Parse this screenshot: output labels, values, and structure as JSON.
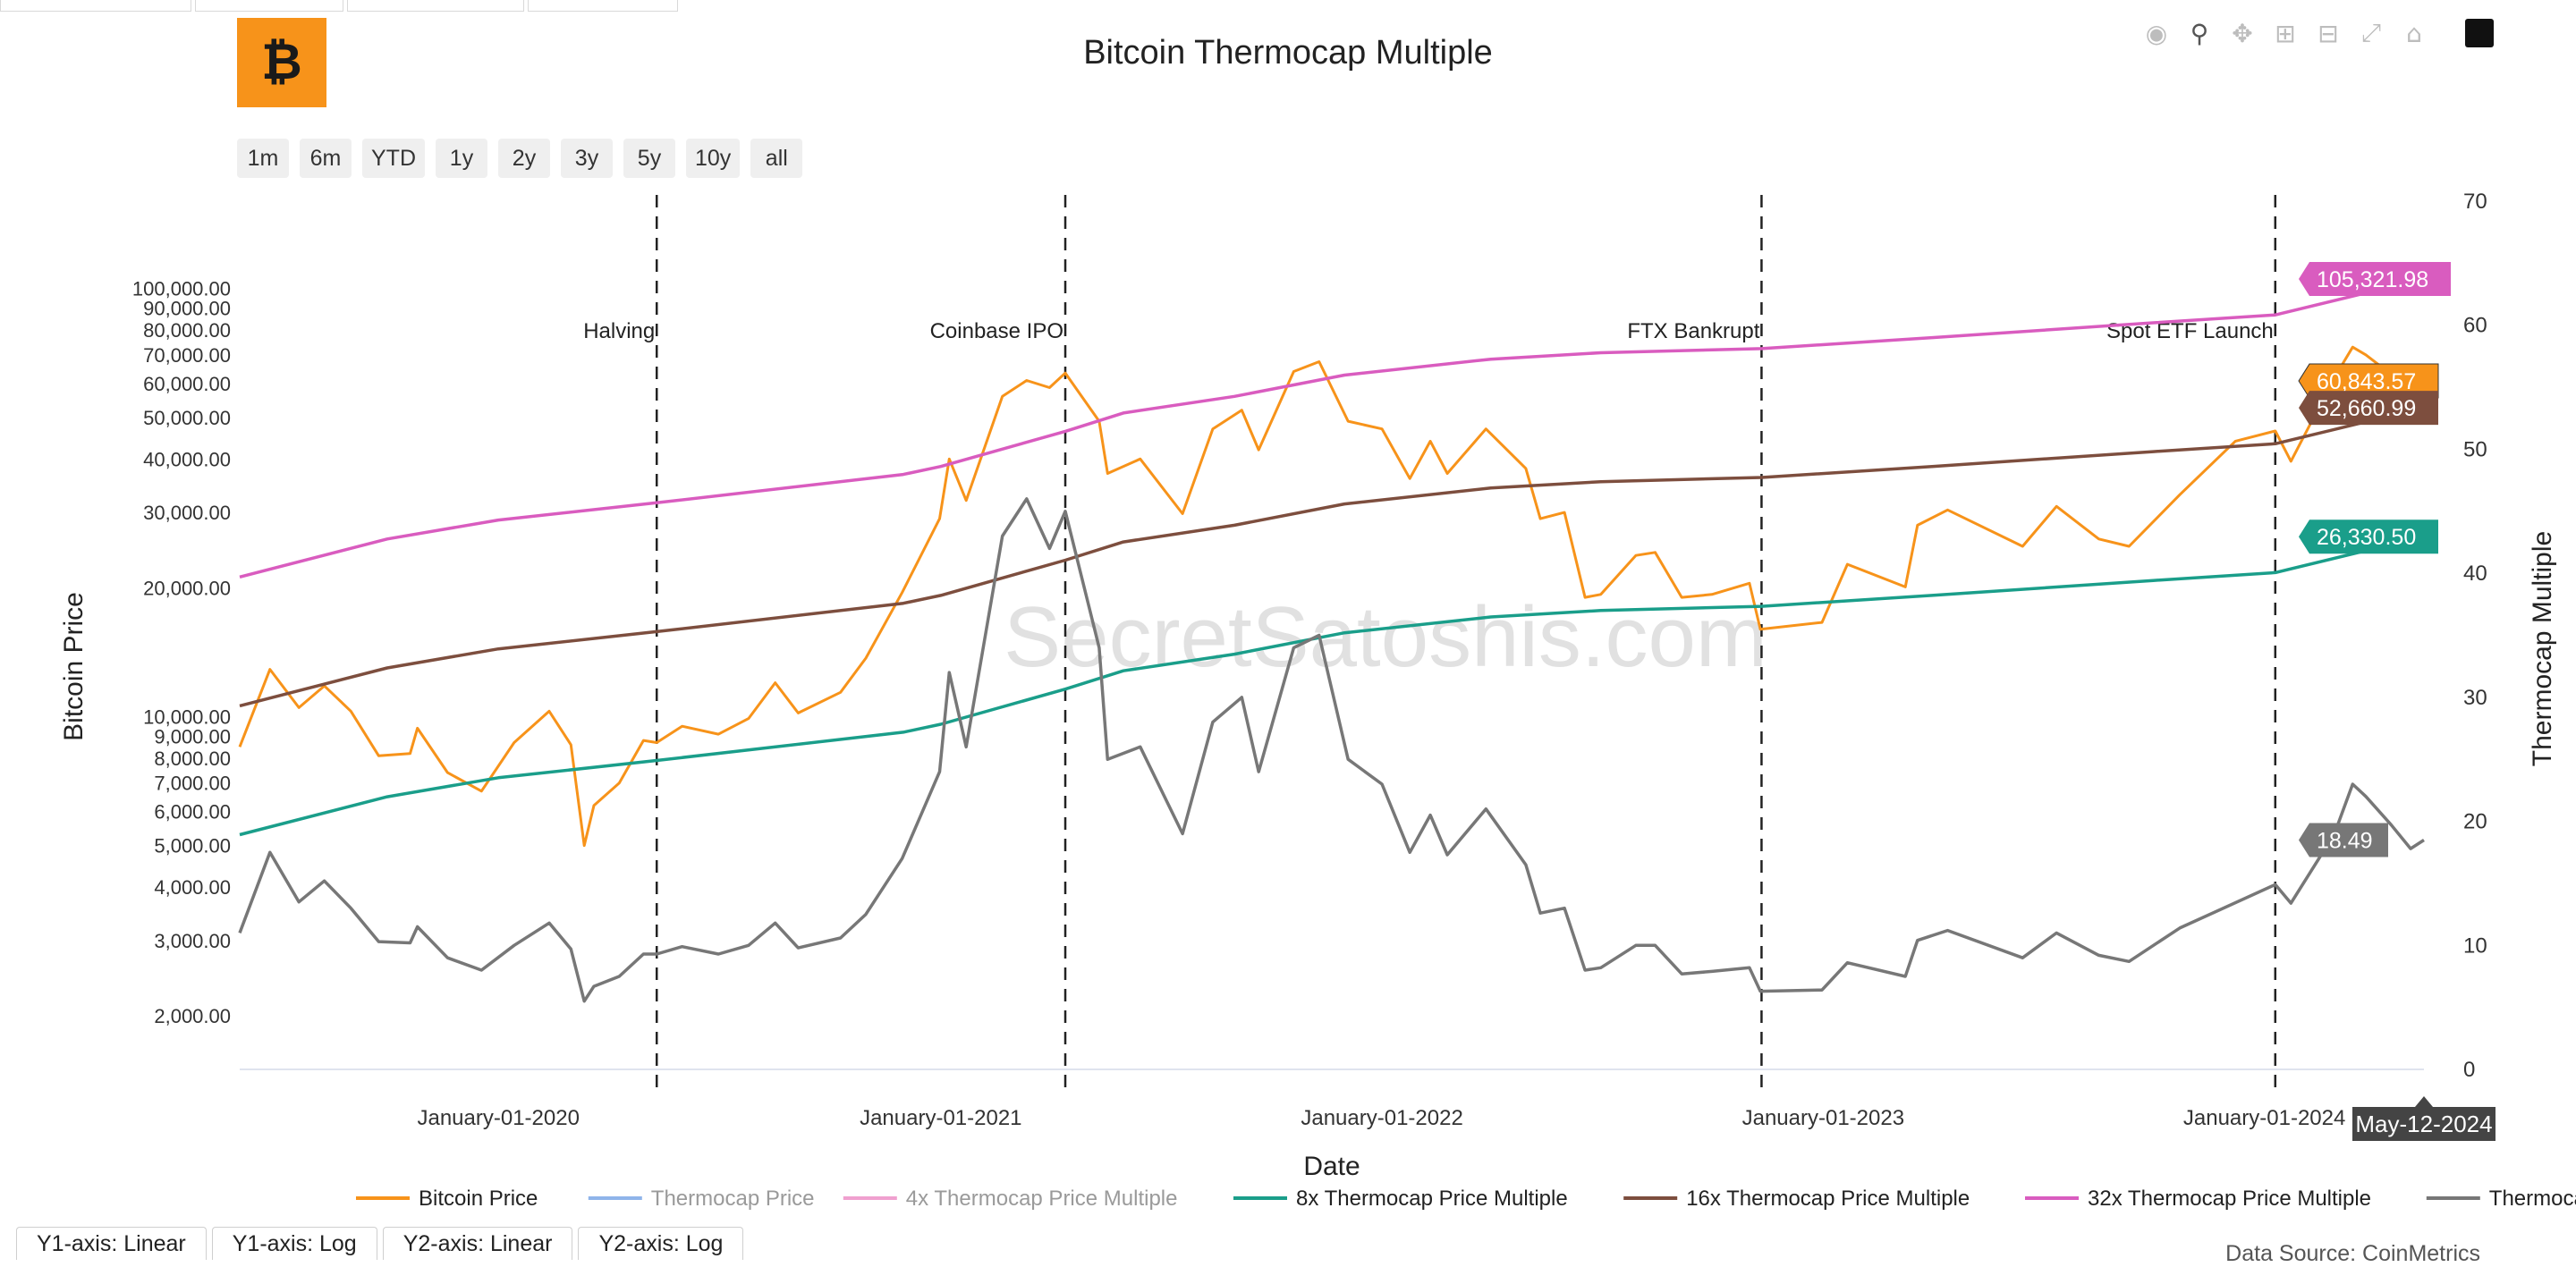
{
  "chart_data": {
    "type": "line",
    "title": "Bitcoin Thermocap Multiple",
    "xlabel": "Date",
    "ylabel": "Bitcoin Price",
    "y2label": "Thermocap Multiple",
    "y_scale": "log",
    "y_range": [
      1500,
      160000
    ],
    "y_ticks": [
      2000,
      3000,
      4000,
      5000,
      6000,
      7000,
      8000,
      9000,
      10000,
      20000,
      30000,
      40000,
      50000,
      60000,
      70000,
      80000,
      90000,
      100000
    ],
    "y_tick_labels": [
      "2,000.00",
      "3,000.00",
      "4,000.00",
      "5,000.00",
      "6,000.00",
      "7,000.00",
      "8,000.00",
      "9,000.00",
      "10,000.00",
      "20,000.00",
      "30,000.00",
      "40,000.00",
      "50,000.00",
      "60,000.00",
      "70,000.00",
      "80,000.00",
      "90,000.00",
      "100,000.00"
    ],
    "y2_range": [
      0,
      70
    ],
    "y2_ticks": [
      0,
      10,
      20,
      30,
      40,
      50,
      60,
      70
    ],
    "x_range": [
      "2019-06-01",
      "2024-05-12"
    ],
    "x_ticks": [
      "2020-01-01",
      "2021-01-01",
      "2022-01-01",
      "2023-01-01",
      "2024-01-01"
    ],
    "x_tick_labels": [
      "January-01-2020",
      "January-01-2021",
      "January-01-2022",
      "January-01-2023",
      "January-01-2024"
    ],
    "hover_x_label": "May-12-2024",
    "events": [
      {
        "date": "2020-05-11",
        "label": "Halving"
      },
      {
        "date": "2021-04-14",
        "label": "Coinbase IPO"
      },
      {
        "date": "2022-11-11",
        "label": "FTX Bankrupt"
      },
      {
        "date": "2024-01-10",
        "label": "Spot ETF Launch"
      }
    ],
    "series": [
      {
        "name": "Bitcoin Price",
        "color": "#f7931a",
        "axis": "y",
        "end_label": "60,843.57",
        "points": [
          [
            "2019-06-01",
            8500
          ],
          [
            "2019-06-26",
            12900
          ],
          [
            "2019-07-20",
            10500
          ],
          [
            "2019-08-10",
            11800
          ],
          [
            "2019-09-01",
            10300
          ],
          [
            "2019-09-24",
            8100
          ],
          [
            "2019-10-20",
            8200
          ],
          [
            "2019-10-26",
            9400
          ],
          [
            "2019-11-20",
            7400
          ],
          [
            "2019-12-18",
            6700
          ],
          [
            "2020-01-14",
            8700
          ],
          [
            "2020-02-12",
            10300
          ],
          [
            "2020-03-01",
            8600
          ],
          [
            "2020-03-12",
            5000
          ],
          [
            "2020-03-20",
            6200
          ],
          [
            "2020-04-10",
            7000
          ],
          [
            "2020-04-30",
            8800
          ],
          [
            "2020-05-11",
            8700
          ],
          [
            "2020-06-01",
            9500
          ],
          [
            "2020-07-01",
            9100
          ],
          [
            "2020-07-26",
            9900
          ],
          [
            "2020-08-17",
            12000
          ],
          [
            "2020-09-05",
            10200
          ],
          [
            "2020-10-10",
            11400
          ],
          [
            "2020-10-31",
            13700
          ],
          [
            "2020-11-30",
            19500
          ],
          [
            "2020-12-31",
            29000
          ],
          [
            "2021-01-08",
            40000
          ],
          [
            "2021-01-22",
            32000
          ],
          [
            "2021-02-21",
            56000
          ],
          [
            "2021-03-13",
            61000
          ],
          [
            "2021-04-01",
            58700
          ],
          [
            "2021-04-14",
            63500
          ],
          [
            "2021-05-12",
            49000
          ],
          [
            "2021-05-19",
            37000
          ],
          [
            "2021-06-15",
            40000
          ],
          [
            "2021-07-20",
            29800
          ],
          [
            "2021-08-14",
            47000
          ],
          [
            "2021-09-07",
            52000
          ],
          [
            "2021-09-21",
            42000
          ],
          [
            "2021-10-20",
            64000
          ],
          [
            "2021-11-10",
            67500
          ],
          [
            "2021-12-04",
            49000
          ],
          [
            "2022-01-01",
            47000
          ],
          [
            "2022-01-24",
            36000
          ],
          [
            "2022-02-10",
            44000
          ],
          [
            "2022-02-24",
            37000
          ],
          [
            "2022-03-28",
            47000
          ],
          [
            "2022-04-30",
            38000
          ],
          [
            "2022-05-12",
            29000
          ],
          [
            "2022-06-01",
            30000
          ],
          [
            "2022-06-18",
            19000
          ],
          [
            "2022-07-01",
            19300
          ],
          [
            "2022-07-30",
            23800
          ],
          [
            "2022-08-15",
            24200
          ],
          [
            "2022-09-06",
            19000
          ],
          [
            "2022-10-01",
            19300
          ],
          [
            "2022-11-01",
            20500
          ],
          [
            "2022-11-10",
            16000
          ],
          [
            "2022-12-31",
            16600
          ],
          [
            "2023-01-21",
            22700
          ],
          [
            "2023-03-10",
            20100
          ],
          [
            "2023-03-20",
            28000
          ],
          [
            "2023-04-14",
            30400
          ],
          [
            "2023-06-15",
            25000
          ],
          [
            "2023-07-13",
            31000
          ],
          [
            "2023-08-17",
            26000
          ],
          [
            "2023-09-11",
            25000
          ],
          [
            "2023-10-23",
            33000
          ],
          [
            "2023-12-08",
            44000
          ],
          [
            "2024-01-10",
            46500
          ],
          [
            "2024-01-23",
            39500
          ],
          [
            "2024-02-28",
            62000
          ],
          [
            "2024-03-14",
            73000
          ],
          [
            "2024-03-25",
            70000
          ],
          [
            "2024-04-15",
            63000
          ],
          [
            "2024-05-01",
            57000
          ],
          [
            "2024-05-12",
            60843.57
          ]
        ]
      },
      {
        "name": "Thermocap Price",
        "color": "#8fb4ea",
        "axis": "y",
        "visible": false,
        "points": []
      },
      {
        "name": "4x Thermocap Price Multiple",
        "color": "#f0a0cf",
        "axis": "y",
        "visible": false,
        "points": []
      },
      {
        "name": "8x Thermocap Price Multiple",
        "color": "#1a9e8a",
        "axis": "y",
        "end_label": "26,330.50",
        "points": [
          [
            "2019-06-01",
            5300
          ],
          [
            "2019-10-01",
            6500
          ],
          [
            "2020-01-01",
            7200
          ],
          [
            "2020-05-11",
            7900
          ],
          [
            "2020-12-01",
            9200
          ],
          [
            "2021-01-01",
            9600
          ],
          [
            "2021-04-14",
            11600
          ],
          [
            "2021-06-01",
            12800
          ],
          [
            "2021-09-01",
            14000
          ],
          [
            "2021-12-01",
            15700
          ],
          [
            "2022-04-01",
            17100
          ],
          [
            "2022-07-01",
            17700
          ],
          [
            "2022-11-11",
            18100
          ],
          [
            "2023-04-01",
            19200
          ],
          [
            "2023-10-01",
            20800
          ],
          [
            "2024-01-10",
            21700
          ],
          [
            "2024-05-12",
            26330.5
          ]
        ]
      },
      {
        "name": "16x Thermocap Price Multiple",
        "color": "#7d4e3e",
        "axis": "y",
        "end_label": "52,660.99",
        "points": [
          [
            "2019-06-01",
            10600
          ],
          [
            "2019-10-01",
            13000
          ],
          [
            "2020-01-01",
            14400
          ],
          [
            "2020-05-11",
            15800
          ],
          [
            "2020-12-01",
            18400
          ],
          [
            "2021-01-01",
            19200
          ],
          [
            "2021-04-14",
            23200
          ],
          [
            "2021-06-01",
            25600
          ],
          [
            "2021-09-01",
            28000
          ],
          [
            "2021-12-01",
            31400
          ],
          [
            "2022-04-01",
            34200
          ],
          [
            "2022-07-01",
            35400
          ],
          [
            "2022-11-11",
            36200
          ],
          [
            "2023-04-01",
            38400
          ],
          [
            "2023-10-01",
            41600
          ],
          [
            "2024-01-10",
            43400
          ],
          [
            "2024-05-12",
            52660.99
          ]
        ]
      },
      {
        "name": "32x Thermocap Price Multiple",
        "color": "#d95cbf",
        "axis": "y",
        "end_label": "105,321.98",
        "points": [
          [
            "2019-06-01",
            21200
          ],
          [
            "2019-10-01",
            26000
          ],
          [
            "2020-01-01",
            28800
          ],
          [
            "2020-05-11",
            31600
          ],
          [
            "2020-12-01",
            36800
          ],
          [
            "2021-01-01",
            38400
          ],
          [
            "2021-04-14",
            46400
          ],
          [
            "2021-06-01",
            51200
          ],
          [
            "2021-09-01",
            56000
          ],
          [
            "2021-12-01",
            62800
          ],
          [
            "2022-04-01",
            68400
          ],
          [
            "2022-07-01",
            70800
          ],
          [
            "2022-11-11",
            72400
          ],
          [
            "2023-04-01",
            76800
          ],
          [
            "2023-10-01",
            83200
          ],
          [
            "2024-01-10",
            86800
          ],
          [
            "2024-05-12",
            105321.98
          ]
        ]
      },
      {
        "name": "Thermocap Multiple",
        "color": "#777777",
        "axis": "y2",
        "end_label": "18.49",
        "points": [
          [
            "2019-06-01",
            11
          ],
          [
            "2019-06-26",
            17.5
          ],
          [
            "2019-07-20",
            13.5
          ],
          [
            "2019-08-10",
            15.2
          ],
          [
            "2019-09-01",
            13
          ],
          [
            "2019-09-24",
            10.3
          ],
          [
            "2019-10-20",
            10.2
          ],
          [
            "2019-10-26",
            11.5
          ],
          [
            "2019-11-20",
            9
          ],
          [
            "2019-12-18",
            8
          ],
          [
            "2020-01-14",
            10
          ],
          [
            "2020-02-12",
            11.8
          ],
          [
            "2020-03-01",
            9.7
          ],
          [
            "2020-03-12",
            5.5
          ],
          [
            "2020-03-20",
            6.7
          ],
          [
            "2020-04-10",
            7.5
          ],
          [
            "2020-04-30",
            9.3
          ],
          [
            "2020-05-11",
            9.3
          ],
          [
            "2020-06-01",
            9.9
          ],
          [
            "2020-07-01",
            9.3
          ],
          [
            "2020-07-26",
            10
          ],
          [
            "2020-08-17",
            11.8
          ],
          [
            "2020-09-05",
            9.8
          ],
          [
            "2020-10-10",
            10.6
          ],
          [
            "2020-10-31",
            12.5
          ],
          [
            "2020-11-30",
            17
          ],
          [
            "2020-12-31",
            24
          ],
          [
            "2021-01-08",
            32
          ],
          [
            "2021-01-22",
            26
          ],
          [
            "2021-02-21",
            43
          ],
          [
            "2021-03-13",
            46
          ],
          [
            "2021-04-01",
            42
          ],
          [
            "2021-04-14",
            45
          ],
          [
            "2021-05-12",
            34
          ],
          [
            "2021-05-19",
            25
          ],
          [
            "2021-06-15",
            26
          ],
          [
            "2021-07-20",
            19
          ],
          [
            "2021-08-14",
            28
          ],
          [
            "2021-09-07",
            30
          ],
          [
            "2021-09-21",
            24
          ],
          [
            "2021-10-20",
            34
          ],
          [
            "2021-11-10",
            35
          ],
          [
            "2021-12-04",
            25
          ],
          [
            "2022-01-01",
            23
          ],
          [
            "2022-01-24",
            17.5
          ],
          [
            "2022-02-10",
            20.5
          ],
          [
            "2022-02-24",
            17.3
          ],
          [
            "2022-03-28",
            21
          ],
          [
            "2022-04-30",
            16.5
          ],
          [
            "2022-05-12",
            12.6
          ],
          [
            "2022-06-01",
            13
          ],
          [
            "2022-06-18",
            8
          ],
          [
            "2022-07-01",
            8.2
          ],
          [
            "2022-07-30",
            10
          ],
          [
            "2022-08-15",
            10
          ],
          [
            "2022-09-06",
            7.7
          ],
          [
            "2022-10-01",
            7.9
          ],
          [
            "2022-11-01",
            8.2
          ],
          [
            "2022-11-10",
            6.3
          ],
          [
            "2022-12-31",
            6.4
          ],
          [
            "2023-01-21",
            8.6
          ],
          [
            "2023-03-10",
            7.5
          ],
          [
            "2023-03-20",
            10.4
          ],
          [
            "2023-04-14",
            11.2
          ],
          [
            "2023-06-15",
            9
          ],
          [
            "2023-07-13",
            11
          ],
          [
            "2023-08-17",
            9.2
          ],
          [
            "2023-09-11",
            8.7
          ],
          [
            "2023-10-23",
            11.4
          ],
          [
            "2024-01-10",
            14.9
          ],
          [
            "2024-01-23",
            13.4
          ],
          [
            "2024-02-28",
            19
          ],
          [
            "2024-03-14",
            23
          ],
          [
            "2024-03-25",
            22
          ],
          [
            "2024-04-15",
            19.7
          ],
          [
            "2024-05-01",
            17.8
          ],
          [
            "2024-05-12",
            18.49
          ]
        ]
      }
    ],
    "legend_position": "bottom",
    "watermark": "SecretSatoshis.com"
  },
  "range_buttons": [
    "1m",
    "6m",
    "YTD",
    "1y",
    "2y",
    "3y",
    "5y",
    "10y",
    "all"
  ],
  "modebar_icons": [
    "camera-icon",
    "zoom-icon",
    "pan-icon",
    "zoom-in-icon",
    "zoom-out-icon",
    "autoscale-icon",
    "reset-axes-icon",
    "plotly-logo-icon"
  ],
  "axis_tabs": [
    "Y1-axis: Linear",
    "Y1-axis: Log",
    "Y2-axis: Linear",
    "Y2-axis: Log"
  ],
  "data_source": "Data Source: CoinMetrics",
  "colors": {
    "brand": "#f7931a",
    "grid": "#e6e6e6"
  }
}
